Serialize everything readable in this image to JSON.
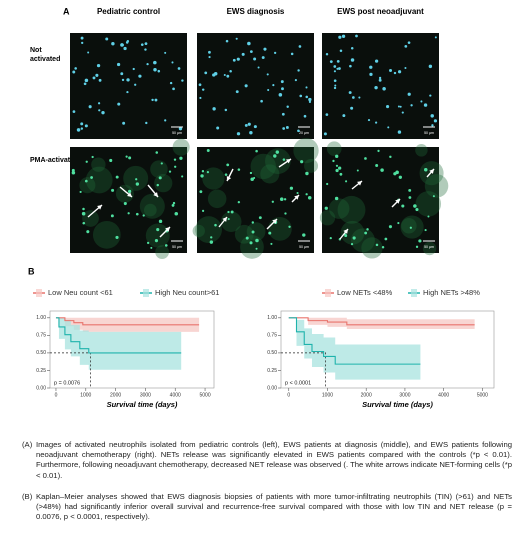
{
  "panel_a": {
    "label": "A",
    "columns": [
      "Pediatric control",
      "EWS diagnosis",
      "EWS post neoadjuvant"
    ],
    "rows": [
      "Not activated",
      "PMA-activated"
    ],
    "scale_bars": [
      [
        "50 µm",
        "20 µm",
        "50 µm"
      ],
      [
        "50 µm",
        "50 µm",
        "50 µm"
      ]
    ]
  },
  "panel_b": {
    "label": "B",
    "plots": [
      {
        "type": "line",
        "xlabel": "Survival time (days)",
        "p_value": "p = 0.0076",
        "xlim": [
          -200,
          5300
        ],
        "ylim": [
          0,
          1.04
        ],
        "xticks": [
          0,
          1000,
          2000,
          3000,
          4000,
          5000
        ],
        "yticks": [
          {
            "value": 0,
            "label": "0.00"
          },
          {
            "value": 0.25,
            "label": "0.25"
          },
          {
            "value": 0.5,
            "label": "0.50"
          },
          {
            "value": 0.75,
            "label": "0.75"
          },
          {
            "value": 1,
            "label": "1.00"
          }
        ],
        "median": {
          "x": 1160,
          "y": 0.5
        },
        "series": [
          {
            "name": "Low Neu count <61",
            "color": "#e8736c",
            "band_color": "#f6c7c3",
            "x": [
              0,
              300,
              600,
              900,
              4800
            ],
            "values": [
              1,
              0.96,
              0.93,
              0.9,
              0.9
            ],
            "ci_low": [
              1,
              0.88,
              0.83,
              0.8,
              0.8
            ],
            "ci_high": [
              1,
              1,
              1,
              1,
              1
            ]
          },
          {
            "name": "High Neu count>61",
            "color": "#1fb3ac",
            "band_color": "#a8e3df",
            "x": [
              0,
              100,
              300,
              500,
              800,
              1100,
              4200
            ],
            "values": [
              1,
              0.87,
              0.76,
              0.66,
              0.56,
              0.5,
              0.5
            ],
            "ci_low": [
              1,
              0.7,
              0.55,
              0.45,
              0.33,
              0.26,
              0.26
            ],
            "ci_high": [
              1,
              1,
              0.97,
              0.9,
              0.82,
              0.8,
              0.8
            ]
          }
        ]
      },
      {
        "type": "line",
        "xlabel": "Survival time (days)",
        "p_value": "p < 0.0001",
        "xlim": [
          -200,
          5300
        ],
        "ylim": [
          0,
          1.04
        ],
        "xticks": [
          0,
          1000,
          2000,
          3000,
          4000,
          5000
        ],
        "yticks": [
          {
            "value": 0,
            "label": "0.00"
          },
          {
            "value": 0.25,
            "label": "0.25"
          },
          {
            "value": 0.5,
            "label": "0.50"
          },
          {
            "value": 0.75,
            "label": "0.75"
          },
          {
            "value": 1,
            "label": "1.00"
          }
        ],
        "median": {
          "x": 950,
          "y": 0.5
        },
        "series": [
          {
            "name": "Low NETs <48%",
            "color": "#e8736c",
            "band_color": "#f6c7c3",
            "x": [
              0,
              500,
              1000,
              1500,
              4800
            ],
            "values": [
              1,
              0.96,
              0.94,
              0.9,
              0.9
            ],
            "ci_low": [
              1,
              0.9,
              0.87,
              0.84,
              0.84
            ],
            "ci_high": [
              1,
              1,
              1,
              0.98,
              0.98
            ]
          },
          {
            "name": "High NETs >48%",
            "color": "#1fb3ac",
            "band_color": "#a8e3df",
            "x": [
              0,
              200,
              400,
              600,
              900,
              1200,
              3400
            ],
            "values": [
              1,
              0.8,
              0.62,
              0.52,
              0.45,
              0.34,
              0.34
            ],
            "ci_low": [
              1,
              0.6,
              0.42,
              0.3,
              0.22,
              0.12,
              0.12
            ],
            "ci_high": [
              1,
              0.97,
              0.85,
              0.77,
              0.72,
              0.62,
              0.62
            ]
          }
        ]
      }
    ]
  },
  "caption": [
    {
      "marker": "(A)",
      "text": "Images of activated neutrophils isolated from pediatric controls (left), EWS patients at diagnosis (middle), and EWS patients following neoadjuvant chemotherapy (right). NETs release was significantly elevated in EWS patients compared with the controls (*p < 0.01). Furthermore, following neoadjuvant chemotherapy, decreased NET release was observed (. The white arrows indicate NET-forming cells (*p < 0.01)."
    },
    {
      "marker": "(B)",
      "text": "Kaplan–Meier analyses showed that EWS diagnosis biopsies of patients with more tumor-infiltrating neutrophils (TIN) (>61) and NETs (>48%) had significantly inferior overall survival and recurrence-free survival compared with those with low TIN and NET release (p = 0.0076, p < 0.0001, respectively)."
    }
  ]
}
